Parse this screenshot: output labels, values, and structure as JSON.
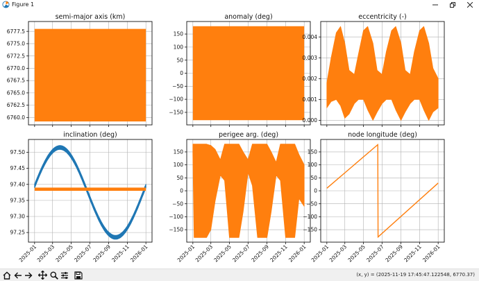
{
  "window": {
    "title": "Figure 1"
  },
  "toolbar": {
    "buttons": [
      "home-icon",
      "back-icon",
      "forward-icon",
      "pan-icon",
      "zoom-icon",
      "configure-subplots-icon",
      "save-icon"
    ],
    "coordinates": "(x, y) = (2025-11-19 17:45:47.122548, 6770.37)"
  },
  "colors": {
    "blue": "#1f77b4",
    "orange": "#ff7f0e",
    "grid": "#b0b0b0"
  },
  "chart_data": [
    {
      "type": "area",
      "title": "semi-major axis (km)",
      "x_range": [
        "2025-01-01",
        "2026-01-01"
      ],
      "ylim": [
        6758.5,
        6779.5
      ],
      "yticks": [
        "6760.0",
        "6762.5",
        "6765.0",
        "6767.5",
        "6770.0",
        "6772.5",
        "6775.0",
        "6777.5"
      ],
      "series": [
        {
          "color": "#ff7f0e",
          "band": {
            "lower": 6759.2,
            "upper": 6778.0
          }
        }
      ]
    },
    {
      "type": "area",
      "title": "anomaly (deg)",
      "x_range": [
        "2025-01-01",
        "2026-01-01"
      ],
      "ylim": [
        -198,
        198
      ],
      "yticks": [
        "150",
        "100",
        "50",
        "0",
        "−50",
        "−100",
        "−150"
      ],
      "series": [
        {
          "color": "#ff7f0e",
          "band": {
            "lower": -180,
            "upper": 180
          }
        }
      ]
    },
    {
      "type": "area",
      "title": "eccentricity (-)",
      "x_range": [
        "2025-01-01",
        "2026-01-01"
      ],
      "ylim": [
        -0.00022,
        0.00474
      ],
      "yticks": [
        "0.000",
        "0.001",
        "0.002",
        "0.003",
        "0.004"
      ],
      "series": [
        {
          "color": "#ff7f0e",
          "x": [
            "2025-01-01",
            "2025-01-15",
            "2025-02-01",
            "2025-02-15",
            "2025-03-01",
            "2025-03-15",
            "2025-04-01",
            "2025-04-15",
            "2025-05-01",
            "2025-05-15",
            "2025-06-01",
            "2025-06-15",
            "2025-07-01",
            "2025-07-15",
            "2025-08-01",
            "2025-08-15",
            "2025-09-01",
            "2025-09-15",
            "2025-10-01",
            "2025-10-15",
            "2025-11-01",
            "2025-11-15",
            "2025-12-01",
            "2025-12-15",
            "2026-01-01"
          ],
          "upper": [
            0.0018,
            0.003,
            0.0042,
            0.0045,
            0.0037,
            0.0024,
            0.0022,
            0.0032,
            0.0043,
            0.0045,
            0.0037,
            0.0024,
            0.0022,
            0.0033,
            0.0043,
            0.0045,
            0.0037,
            0.0024,
            0.0022,
            0.0033,
            0.0043,
            0.0045,
            0.0037,
            0.0025,
            0.002
          ],
          "lower": [
            0.0006,
            0.0009,
            0.001,
            0.0007,
            0.0001,
            0.0003,
            0.0008,
            0.001,
            0.001,
            0.0005,
            0.0,
            0.0004,
            0.0008,
            0.001,
            0.001,
            0.0005,
            0.0,
            0.0004,
            0.0008,
            0.001,
            0.001,
            0.0005,
            0.0,
            0.0004,
            0.0006
          ]
        }
      ]
    },
    {
      "type": "line",
      "title": "inclination (deg)",
      "x_range": [
        "2025-01-01",
        "2026-01-01"
      ],
      "ylim": [
        97.22,
        97.54
      ],
      "yticks": [
        "97.50",
        "97.45",
        "97.40",
        "97.35",
        "97.30",
        "97.25"
      ],
      "xticks": [
        "2025-01",
        "2025-03",
        "2025-05",
        "2025-07",
        "2025-09",
        "2025-11",
        "2026-01"
      ],
      "series": [
        {
          "color": "#1f77b4",
          "kind": "sinusoid-band",
          "center": 97.375,
          "amplitude": 0.14,
          "peak": "2025-03-25",
          "period_days": 365,
          "half_width": 0.006
        },
        {
          "color": "#ff7f0e",
          "kind": "band",
          "lower": 97.38,
          "upper": 97.39
        }
      ]
    },
    {
      "type": "area",
      "title": "perigee arg. (deg)",
      "x_range": [
        "2025-01-01",
        "2026-01-01"
      ],
      "ylim": [
        -198,
        198
      ],
      "yticks": [
        "150",
        "100",
        "50",
        "0",
        "−50",
        "−100",
        "−150"
      ],
      "xticks": [
        "2025-01",
        "2025-03",
        "2025-05",
        "2025-07",
        "2025-09",
        "2025-11",
        "2026-01"
      ],
      "series": [
        {
          "color": "#ff7f0e",
          "x": [
            "2025-01-01",
            "2025-01-05",
            "2025-01-15",
            "2025-02-01",
            "2025-02-15",
            "2025-03-01",
            "2025-03-15",
            "2025-04-01",
            "2025-04-15",
            "2025-05-01",
            "2025-05-15",
            "2025-06-01",
            "2025-06-15",
            "2025-07-01",
            "2025-07-15",
            "2025-08-01",
            "2025-08-15",
            "2025-09-01",
            "2025-09-15",
            "2025-10-01",
            "2025-10-15",
            "2025-11-01",
            "2025-11-15",
            "2025-12-01",
            "2025-12-15",
            "2026-01-01"
          ],
          "upper": [
            180,
            180,
            180,
            180,
            180,
            175,
            160,
            120,
            180,
            180,
            180,
            180,
            150,
            120,
            180,
            180,
            180,
            180,
            150,
            110,
            180,
            180,
            180,
            180,
            140,
            100
          ],
          "lower": [
            140,
            -180,
            -180,
            -180,
            -180,
            -150,
            -40,
            60,
            40,
            -180,
            -180,
            -180,
            -80,
            70,
            20,
            -180,
            -180,
            -180,
            -80,
            60,
            40,
            -180,
            -180,
            -180,
            -30,
            -60
          ]
        }
      ]
    },
    {
      "type": "line",
      "title": "node longitude (deg)",
      "x_range": [
        "2025-01-01",
        "2026-01-01"
      ],
      "ylim": [
        -198,
        198
      ],
      "yticks": [
        "150",
        "100",
        "50",
        "0",
        "−50",
        "−100",
        "−150"
      ],
      "xticks": [
        "2025-01",
        "2025-03",
        "2025-05",
        "2025-07",
        "2025-09",
        "2025-11",
        "2026-01"
      ],
      "series": [
        {
          "color": "#ff7f0e",
          "x": [
            "2025-01-01",
            "2025-06-17",
            "2025-06-18",
            "2026-01-01"
          ],
          "y": [
            10,
            178,
            -178,
            30
          ]
        }
      ]
    }
  ]
}
